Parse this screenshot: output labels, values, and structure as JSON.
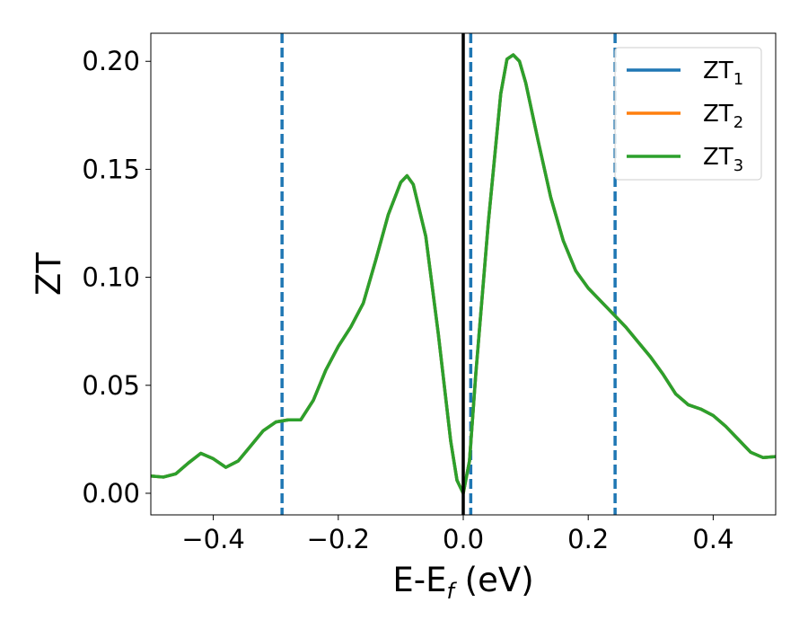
{
  "chart_data": {
    "type": "line",
    "xlabel": {
      "main": "E-E",
      "sub": "f",
      "suffix": " (eV)"
    },
    "ylabel": "ZT",
    "xlim": [
      -0.5,
      0.5
    ],
    "ylim": [
      -0.01,
      0.213
    ],
    "xticks": [
      {
        "value": -0.4,
        "label": "−0.4"
      },
      {
        "value": -0.2,
        "label": "−0.2"
      },
      {
        "value": 0.0,
        "label": "0.0"
      },
      {
        "value": 0.2,
        "label": "0.2"
      },
      {
        "value": 0.4,
        "label": "0.4"
      }
    ],
    "yticks": [
      {
        "value": 0.0,
        "label": "0.00"
      },
      {
        "value": 0.05,
        "label": "0.05"
      },
      {
        "value": 0.1,
        "label": "0.10"
      },
      {
        "value": 0.15,
        "label": "0.15"
      },
      {
        "value": 0.2,
        "label": "0.20"
      }
    ],
    "grid": false,
    "legend_position": "top-right",
    "series": [
      {
        "name": "ZT",
        "sub": "1",
        "color": "#1f77b4"
      },
      {
        "name": "ZT",
        "sub": "2",
        "color": "#ff7f0e"
      },
      {
        "name": "ZT",
        "sub": "3",
        "color": "#2ca02c"
      }
    ],
    "curve_points": [
      [
        -0.5,
        0.008
      ],
      [
        -0.48,
        0.0075
      ],
      [
        -0.46,
        0.009
      ],
      [
        -0.44,
        0.014
      ],
      [
        -0.42,
        0.0185
      ],
      [
        -0.4,
        0.016
      ],
      [
        -0.38,
        0.012
      ],
      [
        -0.36,
        0.015
      ],
      [
        -0.34,
        0.022
      ],
      [
        -0.32,
        0.029
      ],
      [
        -0.3,
        0.033
      ],
      [
        -0.28,
        0.034
      ],
      [
        -0.26,
        0.034
      ],
      [
        -0.24,
        0.043
      ],
      [
        -0.22,
        0.057
      ],
      [
        -0.2,
        0.068
      ],
      [
        -0.18,
        0.077
      ],
      [
        -0.16,
        0.088
      ],
      [
        -0.14,
        0.108
      ],
      [
        -0.12,
        0.129
      ],
      [
        -0.1,
        0.144
      ],
      [
        -0.09,
        0.147
      ],
      [
        -0.08,
        0.143
      ],
      [
        -0.06,
        0.119
      ],
      [
        -0.04,
        0.074
      ],
      [
        -0.02,
        0.024
      ],
      [
        -0.01,
        0.006
      ],
      [
        0.0,
        0.0
      ],
      [
        0.01,
        0.015
      ],
      [
        0.02,
        0.055
      ],
      [
        0.04,
        0.125
      ],
      [
        0.06,
        0.185
      ],
      [
        0.07,
        0.201
      ],
      [
        0.08,
        0.203
      ],
      [
        0.09,
        0.2
      ],
      [
        0.1,
        0.19
      ],
      [
        0.12,
        0.163
      ],
      [
        0.14,
        0.137
      ],
      [
        0.16,
        0.117
      ],
      [
        0.18,
        0.103
      ],
      [
        0.2,
        0.095
      ],
      [
        0.22,
        0.089
      ],
      [
        0.24,
        0.083
      ],
      [
        0.26,
        0.077
      ],
      [
        0.28,
        0.07
      ],
      [
        0.3,
        0.063
      ],
      [
        0.32,
        0.055
      ],
      [
        0.34,
        0.046
      ],
      [
        0.36,
        0.041
      ],
      [
        0.38,
        0.039
      ],
      [
        0.4,
        0.036
      ],
      [
        0.42,
        0.031
      ],
      [
        0.44,
        0.025
      ],
      [
        0.46,
        0.019
      ],
      [
        0.48,
        0.0165
      ],
      [
        0.5,
        0.017
      ]
    ],
    "vlines": [
      {
        "x": -0.29,
        "style": "dashed",
        "color": "#1f77b4"
      },
      {
        "x": 0.012,
        "style": "dashed",
        "color": "#1f77b4"
      },
      {
        "x": 0.243,
        "style": "dashed",
        "color": "#1f77b4"
      },
      {
        "x": 0.0,
        "style": "solid",
        "color": "#000000"
      }
    ]
  }
}
